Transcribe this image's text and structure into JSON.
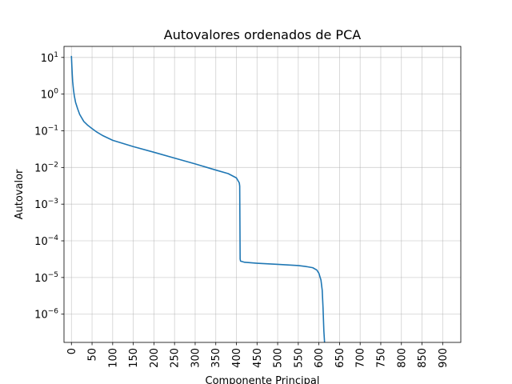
{
  "chart_data": {
    "type": "line",
    "title": "Autovalores ordenados de PCA",
    "xlabel": "Componente Principal",
    "ylabel": "Autovalor",
    "yscale": "log",
    "grid": true,
    "xlim": [
      -18,
      944
    ],
    "ylim": [
      1.7e-07,
      20
    ],
    "x_ticks": [
      0,
      50,
      100,
      150,
      200,
      250,
      300,
      350,
      400,
      450,
      500,
      550,
      600,
      650,
      700,
      750,
      800,
      850,
      900
    ],
    "y_ticks": [
      {
        "value": 10,
        "base": "10",
        "exp": "1"
      },
      {
        "value": 1,
        "base": "10",
        "exp": "0"
      },
      {
        "value": 0.1,
        "base": "10",
        "exp": "−1"
      },
      {
        "value": 0.01,
        "base": "10",
        "exp": "−2"
      },
      {
        "value": 0.001,
        "base": "10",
        "exp": "−3"
      },
      {
        "value": 0.0001,
        "base": "10",
        "exp": "−4"
      },
      {
        "value": 1e-05,
        "base": "10",
        "exp": "−5"
      },
      {
        "value": 1e-06,
        "base": "10",
        "exp": "−6"
      }
    ],
    "series": [
      {
        "color": "#1f77b4",
        "points": [
          [
            0,
            11
          ],
          [
            1,
            6
          ],
          [
            2,
            3.5
          ],
          [
            3,
            2.2
          ],
          [
            5,
            1.3
          ],
          [
            7,
            0.9
          ],
          [
            10,
            0.6
          ],
          [
            15,
            0.4
          ],
          [
            20,
            0.28
          ],
          [
            30,
            0.18
          ],
          [
            40,
            0.14
          ],
          [
            50,
            0.115
          ],
          [
            60,
            0.095
          ],
          [
            75,
            0.075
          ],
          [
            100,
            0.055
          ],
          [
            150,
            0.037
          ],
          [
            200,
            0.026
          ],
          [
            250,
            0.018
          ],
          [
            300,
            0.0125
          ],
          [
            350,
            0.0085
          ],
          [
            380,
            0.0068
          ],
          [
            400,
            0.0052
          ],
          [
            407,
            0.0038
          ],
          [
            408,
            0.0031
          ],
          [
            409,
            3.2e-05
          ],
          [
            410,
            2.8e-05
          ],
          [
            420,
            2.6e-05
          ],
          [
            450,
            2.45e-05
          ],
          [
            500,
            2.28e-05
          ],
          [
            550,
            2.12e-05
          ],
          [
            570,
            1.98e-05
          ],
          [
            585,
            1.85e-05
          ],
          [
            595,
            1.6e-05
          ],
          [
            600,
            1.3e-05
          ],
          [
            605,
            8.5e-06
          ],
          [
            608,
            4.5e-06
          ],
          [
            610,
            1.5e-06
          ],
          [
            612,
            3.5e-07
          ],
          [
            614,
            1.5e-07
          ]
        ]
      }
    ]
  }
}
